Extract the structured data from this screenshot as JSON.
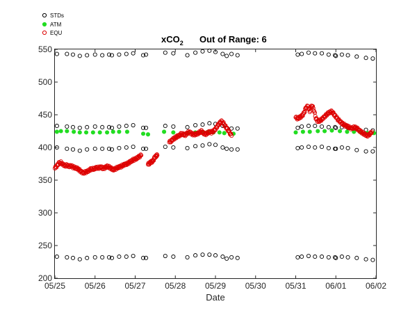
{
  "chart_data": {
    "type": "scatter",
    "title": "xCO",
    "title_subscript": "2",
    "annotation": "Out of Range: 6",
    "xlabel": "Date",
    "ylabel": "",
    "x_ticks": [
      "05/25",
      "05/26",
      "05/27",
      "05/28",
      "05/29",
      "05/30",
      "05/31",
      "06/01",
      "06/02"
    ],
    "y_ticks": [
      "200",
      "250",
      "300",
      "350",
      "400",
      "450",
      "500",
      "550"
    ],
    "xlim_days": [
      0,
      8
    ],
    "ylim": [
      200,
      550
    ],
    "grid": false,
    "legend_position": "top-left",
    "series": [
      {
        "name": "STDs",
        "marker": "open-circle",
        "color": "#000000",
        "times": [
          0.05,
          0.3,
          0.45,
          0.62,
          0.8,
          1.0,
          1.18,
          1.35,
          1.42,
          1.6,
          1.78,
          1.95,
          2.2,
          2.27,
          2.75,
          2.95,
          3.3,
          3.5,
          3.68,
          3.85,
          4.0,
          4.18,
          4.28,
          4.4,
          4.55,
          6.05,
          6.15,
          6.32,
          6.48,
          6.65,
          6.82,
          6.98,
          7.0,
          7.15,
          7.3,
          7.52,
          7.75,
          7.92
        ],
        "levels": [
          [
            233,
            400,
            433,
            543
          ],
          [
            232,
            398,
            432,
            543
          ],
          [
            231,
            397,
            431,
            542
          ],
          [
            229,
            395,
            430,
            540
          ],
          [
            231,
            397,
            431,
            541
          ],
          [
            232,
            398,
            432,
            542
          ],
          [
            232,
            398,
            431,
            541
          ],
          [
            232,
            398,
            431,
            542
          ],
          [
            231,
            397,
            430,
            541
          ],
          [
            233,
            399,
            432,
            542
          ],
          [
            233,
            400,
            433,
            543
          ],
          [
            234,
            401,
            434,
            544
          ],
          [
            231,
            398,
            430,
            541
          ],
          [
            231,
            398,
            430,
            542
          ],
          [
            234,
            401,
            433,
            545
          ],
          [
            233,
            400,
            432,
            544
          ],
          [
            232,
            399,
            431,
            541
          ],
          [
            235,
            402,
            434,
            545
          ],
          [
            236,
            403,
            435,
            547
          ],
          [
            236,
            405,
            437,
            548
          ],
          [
            235,
            404,
            436,
            546
          ],
          [
            233,
            400,
            433,
            543
          ],
          [
            230,
            398,
            430,
            540
          ],
          [
            232,
            397,
            429,
            543
          ],
          [
            231,
            397,
            429,
            541
          ],
          [
            232,
            399,
            430,
            542
          ],
          [
            233,
            400,
            432,
            543
          ],
          [
            234,
            401,
            433,
            545
          ],
          [
            233,
            400,
            433,
            544
          ],
          [
            233,
            401,
            432,
            544
          ],
          [
            232,
            399,
            431,
            542
          ],
          [
            232,
            398,
            431,
            541
          ],
          [
            231,
            398,
            430,
            540
          ],
          [
            233,
            400,
            431,
            542
          ],
          [
            232,
            399,
            430,
            541
          ],
          [
            231,
            396,
            428,
            539
          ],
          [
            229,
            394,
            427,
            537
          ],
          [
            228,
            394,
            426,
            536
          ]
        ]
      },
      {
        "name": "ATM",
        "marker": "filled-circle",
        "color": "#22dd22",
        "x": [
          0.05,
          0.15,
          0.3,
          0.47,
          0.62,
          0.78,
          0.95,
          1.12,
          1.3,
          1.45,
          1.6,
          1.8,
          2.2,
          2.32,
          2.72,
          2.95,
          3.32,
          3.5,
          3.68,
          3.82,
          3.95,
          4.1,
          4.22,
          4.45,
          6.0,
          6.18,
          6.35,
          6.55,
          6.72,
          6.9,
          7.1,
          7.28,
          7.45,
          7.62,
          7.78,
          7.95
        ],
        "y": [
          424,
          425,
          425,
          424,
          423,
          423,
          423,
          423,
          423,
          424,
          424,
          424,
          421,
          420,
          424,
          423,
          422,
          423,
          424,
          424,
          423,
          423,
          422,
          421,
          423,
          424,
          424,
          425,
          425,
          426,
          425,
          424,
          424,
          423,
          422,
          422
        ]
      },
      {
        "name": "EQU",
        "marker": "open-circle",
        "color": "#dd0000",
        "segments": [
          {
            "t": [
              0.0,
              0.05,
              0.1,
              0.15,
              0.2,
              0.25,
              0.3,
              0.35,
              0.4,
              0.45,
              0.5,
              0.55,
              0.6,
              0.65,
              0.7,
              0.75,
              0.8,
              0.85,
              0.9,
              0.95,
              1.0,
              1.05,
              1.1,
              1.15,
              1.2,
              1.25,
              1.3,
              1.35,
              1.4,
              1.45,
              1.5,
              1.55,
              1.6,
              1.65,
              1.7,
              1.75,
              1.8,
              1.85,
              1.9,
              1.95,
              2.0,
              2.05,
              2.1,
              2.15
            ],
            "v": [
              368,
              372,
              376,
              377,
              374,
              372,
              373,
              371,
              372,
              370,
              369,
              368,
              366,
              363,
              361,
              362,
              363,
              365,
              367,
              367,
              368,
              369,
              369,
              370,
              368,
              369,
              371,
              370,
              368,
              366,
              367,
              369,
              370,
              371,
              373,
              374,
              375,
              377,
              379,
              381,
              382,
              384,
              386,
              388
            ]
          },
          {
            "t": [
              2.32,
              2.36,
              2.4,
              2.44,
              2.48,
              2.52,
              2.55
            ],
            "v": [
              374,
              376,
              378,
              379,
              384,
              387,
              388
            ]
          },
          {
            "t": [
              2.85,
              2.9,
              2.95,
              3.0,
              3.05,
              3.1,
              3.15,
              3.2,
              3.25,
              3.3,
              3.35,
              3.4,
              3.45,
              3.5,
              3.55,
              3.6,
              3.65,
              3.7,
              3.75,
              3.8,
              3.85,
              3.9,
              3.95,
              4.0,
              4.05,
              4.1,
              4.15,
              4.2,
              4.25,
              4.3,
              4.35,
              4.4
            ],
            "v": [
              408,
              410,
              413,
              415,
              417,
              418,
              421,
              420,
              419,
              422,
              424,
              421,
              420,
              420,
              421,
              423,
              425,
              422,
              420,
              422,
              424,
              423,
              425,
              428,
              433,
              437,
              440,
              437,
              432,
              428,
              423,
              418
            ]
          },
          {
            "t": [
              6.0,
              6.05,
              6.1,
              6.15,
              6.2,
              6.25,
              6.3,
              6.35,
              6.4,
              6.45,
              6.5,
              6.55,
              6.6,
              6.65,
              6.7,
              6.75,
              6.8,
              6.85,
              6.9,
              6.95,
              7.0,
              7.05,
              7.1,
              7.15,
              7.2,
              7.25,
              7.3,
              7.35,
              7.4,
              7.45,
              7.5,
              7.55,
              7.6,
              7.65,
              7.7,
              7.75,
              7.8,
              7.85,
              7.9
            ],
            "v": [
              446,
              444,
              446,
              448,
              452,
              460,
              463,
              455,
              465,
              458,
              445,
              440,
              441,
              443,
              446,
              449,
              452,
              454,
              455,
              451,
              447,
              443,
              440,
              437,
              435,
              433,
              432,
              430,
              429,
              431,
              430,
              428,
              425,
              423,
              421,
              419,
              418,
              421,
              424
            ]
          }
        ]
      }
    ]
  }
}
